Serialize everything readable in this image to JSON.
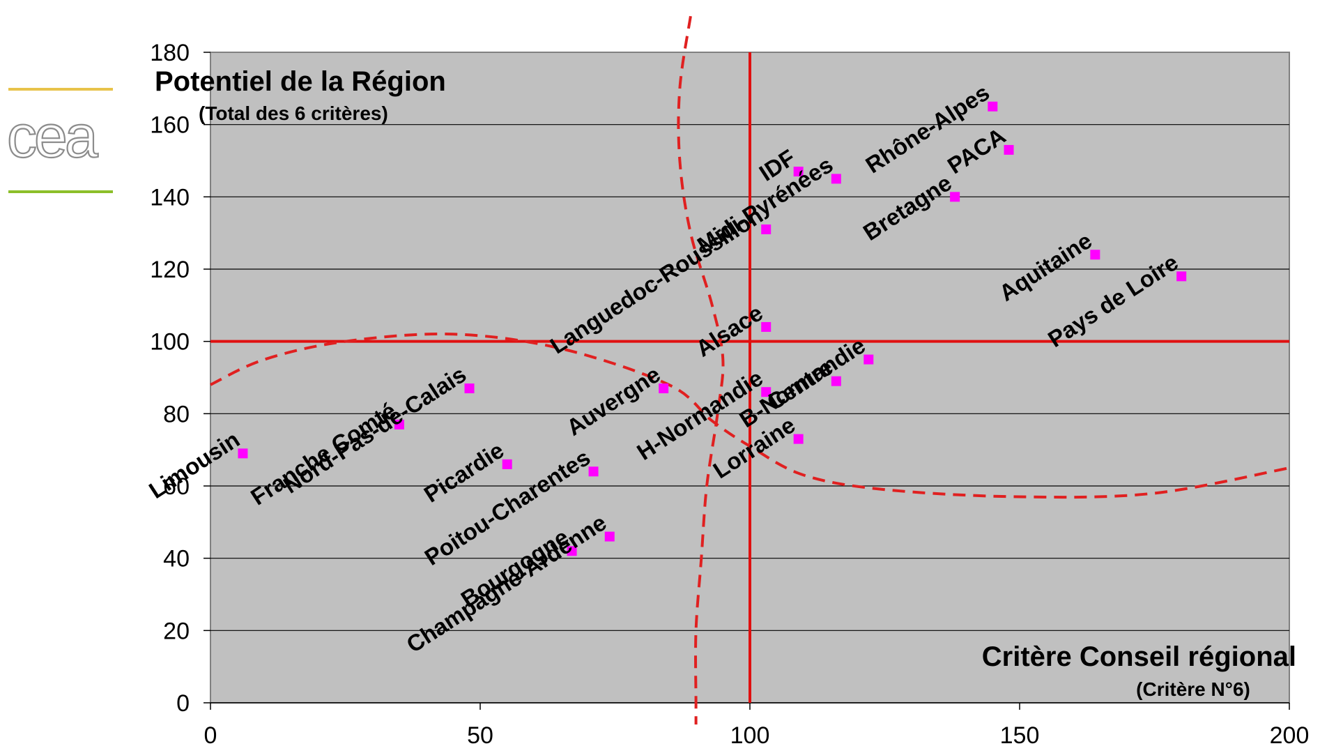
{
  "logo": {
    "text": "cea",
    "line_top_color": "#e8c34a",
    "line_bottom_color": "#8cbf2a",
    "text_color": "#8c8c8c"
  },
  "colors": {
    "plot_background": "#c0c0c0",
    "gridline": "#000000",
    "reference_line": "#e01010",
    "dashed_curve": "#e02020",
    "marker": "#ff00ff"
  },
  "chart_data": {
    "type": "scatter",
    "ylabel": "Potentiel de la Région",
    "ylabel_sub": "(Total des 6 critères)",
    "xlabel": "Critère Conseil régional",
    "xlabel_sub": "(Critère N°6)",
    "xlim": [
      0,
      200
    ],
    "ylim": [
      0,
      180
    ],
    "x_ticks": [
      0,
      50,
      100,
      150,
      200
    ],
    "y_ticks": [
      0,
      20,
      40,
      60,
      80,
      100,
      120,
      140,
      160,
      180
    ],
    "grid": "horizontal",
    "reference_lines": {
      "x": 100,
      "y": 100
    },
    "points": [
      {
        "label": "Limousin",
        "x": 6,
        "y": 69
      },
      {
        "label": "Franche Comté",
        "x": 35,
        "y": 77
      },
      {
        "label": "Nord-Pas-de-Calais",
        "x": 48,
        "y": 87
      },
      {
        "label": "Picardie",
        "x": 55,
        "y": 66
      },
      {
        "label": "Bourgogne",
        "x": 67,
        "y": 42
      },
      {
        "label": "Poitou-Charentes",
        "x": 71,
        "y": 64
      },
      {
        "label": "Champagne-Ardenne",
        "x": 74,
        "y": 46
      },
      {
        "label": "Auvergne",
        "x": 84,
        "y": 87
      },
      {
        "label": "Languedoc-Roussillon",
        "x": 103,
        "y": 131
      },
      {
        "label": "Alsace",
        "x": 103,
        "y": 104
      },
      {
        "label": "H-Normandie",
        "x": 103,
        "y": 86
      },
      {
        "label": "IDF",
        "x": 109,
        "y": 147
      },
      {
        "label": "Lorraine",
        "x": 109,
        "y": 73
      },
      {
        "label": "Midi-Pyrénées",
        "x": 116,
        "y": 145
      },
      {
        "label": "Centre",
        "x": 116,
        "y": 89
      },
      {
        "label": "B-Normandie",
        "x": 122,
        "y": 95
      },
      {
        "label": "Bretagne",
        "x": 138,
        "y": 140
      },
      {
        "label": "Rhône-Alpes",
        "x": 145,
        "y": 165
      },
      {
        "label": "PACA",
        "x": 148,
        "y": 153
      },
      {
        "label": "Aquitaine",
        "x": 164,
        "y": 124
      },
      {
        "label": "Pays de Loire",
        "x": 180,
        "y": 118
      }
    ],
    "dashed_curves": [
      [
        [
          0,
          88
        ],
        [
          10,
          95
        ],
        [
          25,
          100
        ],
        [
          45,
          102
        ],
        [
          65,
          98
        ],
        [
          85,
          88
        ],
        [
          93,
          78
        ],
        [
          100,
          71
        ],
        [
          110,
          63
        ],
        [
          125,
          59
        ],
        [
          150,
          57
        ],
        [
          175,
          58
        ],
        [
          200,
          65
        ]
      ],
      [
        [
          89,
          190
        ],
        [
          87,
          170
        ],
        [
          87,
          150
        ],
        [
          89,
          130
        ],
        [
          93,
          110
        ],
        [
          95,
          95
        ],
        [
          94,
          80
        ],
        [
          92,
          60
        ],
        [
          91,
          40
        ],
        [
          90,
          20
        ],
        [
          90,
          0
        ],
        [
          90,
          -6
        ]
      ]
    ]
  }
}
